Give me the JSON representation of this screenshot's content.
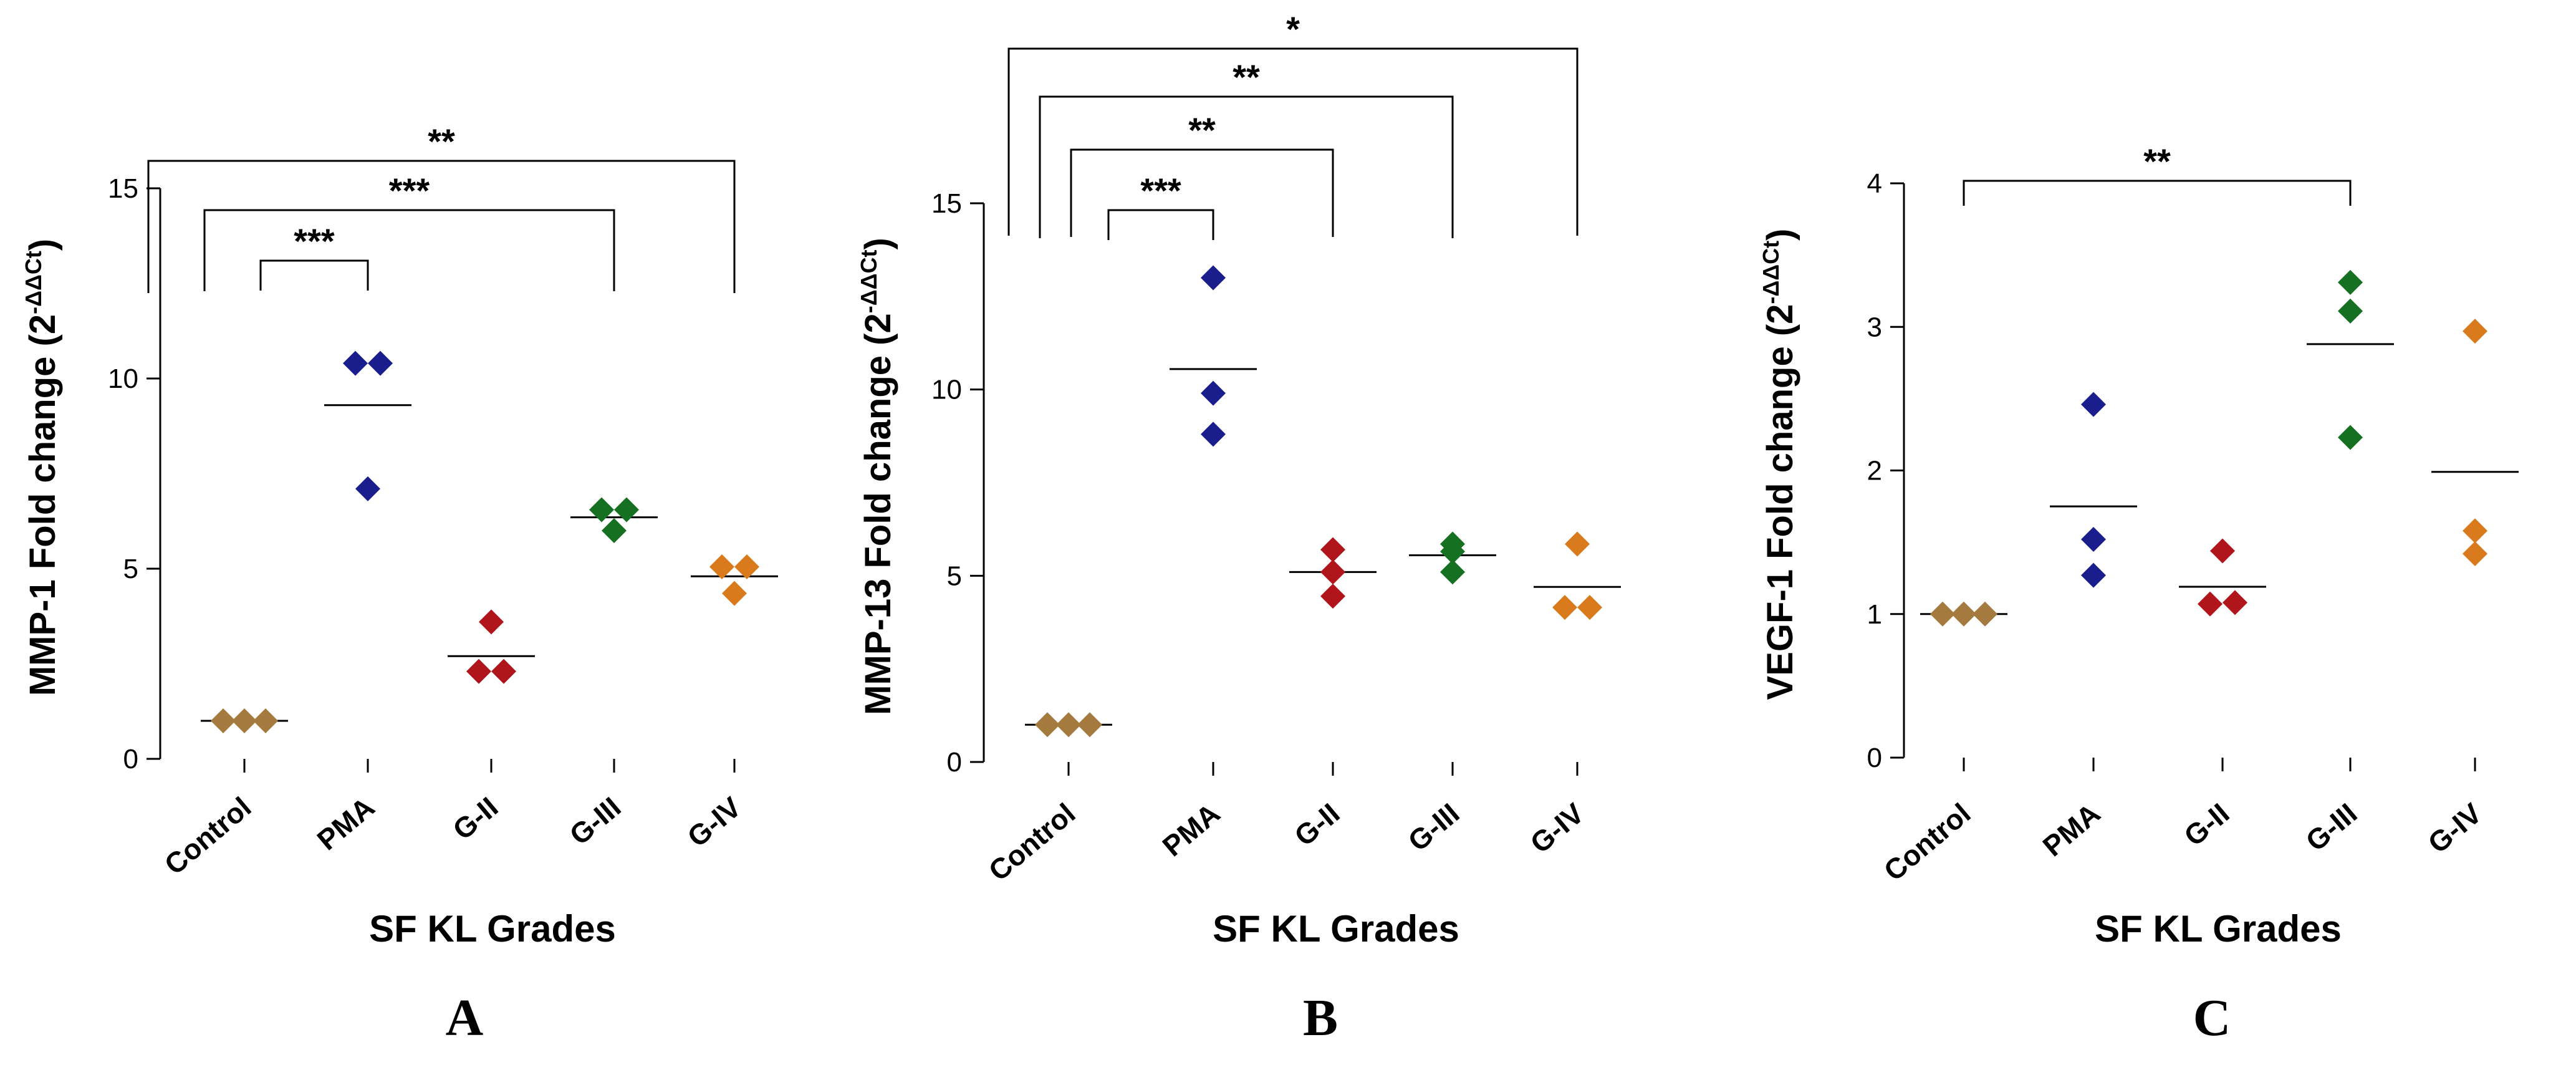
{
  "chart_data": [
    {
      "type": "scatter",
      "panel": "A",
      "ylabel_main": "MMP-1 Fold change (2",
      "ylabel_sup": "-ΔΔCt",
      "ylabel_close": ")",
      "xlabel": "SF KL Grades",
      "ylim": [
        0,
        15
      ],
      "yticks": [
        0,
        5,
        10,
        15
      ],
      "categories": [
        "Control",
        "PMA",
        "G-II",
        "G-III",
        "G-IV"
      ],
      "colors": [
        "#a57a3f",
        "#1a1d8c",
        "#b0151c",
        "#157021",
        "#d97b1c"
      ],
      "series": [
        {
          "name": "Control",
          "values": [
            1.0,
            1.0,
            1.0
          ],
          "mean": 1.0
        },
        {
          "name": "PMA",
          "values": [
            10.4,
            10.4,
            7.1
          ],
          "mean": 9.3
        },
        {
          "name": "G-II",
          "values": [
            2.3,
            3.6,
            2.3
          ],
          "mean": 2.7
        },
        {
          "name": "G-III",
          "values": [
            6.55,
            6.0,
            6.55
          ],
          "mean": 6.35
        },
        {
          "name": "G-IV",
          "values": [
            5.05,
            4.35,
            5.05
          ],
          "mean": 4.8
        }
      ],
      "brackets": [
        {
          "from": "Control",
          "to": "PMA",
          "label": "***"
        },
        {
          "from": "Control",
          "to": "G-III",
          "label": "***"
        },
        {
          "from": "Control",
          "to": "G-IV",
          "label": "**"
        }
      ]
    },
    {
      "type": "scatter",
      "panel": "B",
      "ylabel_main": "MMP-13 Fold change (2",
      "ylabel_sup": "-ΔΔCt",
      "ylabel_close": ")",
      "xlabel": "SF KL Grades",
      "ylim": [
        0,
        15
      ],
      "yticks": [
        0,
        5,
        10,
        15
      ],
      "categories": [
        "Control",
        "PMA",
        "G-II",
        "G-III",
        "G-IV"
      ],
      "colors": [
        "#a57a3f",
        "#1a1d8c",
        "#b0151c",
        "#157021",
        "#d97b1c"
      ],
      "series": [
        {
          "name": "Control",
          "values": [
            1.0,
            1.0,
            1.0
          ],
          "mean": 1.0
        },
        {
          "name": "PMA",
          "values": [
            13.0,
            9.9,
            8.8
          ],
          "mean": 10.55
        },
        {
          "name": "G-II",
          "values": [
            5.7,
            5.1,
            4.45
          ],
          "mean": 5.1
        },
        {
          "name": "G-III",
          "values": [
            5.85,
            5.1,
            5.65
          ],
          "mean": 5.55
        },
        {
          "name": "G-IV",
          "values": [
            4.15,
            5.85,
            4.15
          ],
          "mean": 4.7
        }
      ],
      "brackets": [
        {
          "from": "Control",
          "to": "PMA",
          "label": "***"
        },
        {
          "from": "Control",
          "to": "G-II",
          "label": "**"
        },
        {
          "from": "Control",
          "to": "G-III",
          "label": "**"
        },
        {
          "from": "Control",
          "to": "G-IV",
          "label": "*"
        }
      ]
    },
    {
      "type": "scatter",
      "panel": "C",
      "ylabel_main": "VEGF-1 Fold change (2",
      "ylabel_sup": "-ΔΔCt",
      "ylabel_close": ")",
      "xlabel": "SF KL Grades",
      "ylim": [
        0,
        4
      ],
      "yticks": [
        0,
        1,
        2,
        3,
        4
      ],
      "categories": [
        "Control",
        "PMA",
        "G-II",
        "G-III",
        "G-IV"
      ],
      "colors": [
        "#a57a3f",
        "#1a1d8c",
        "#b0151c",
        "#157021",
        "#d97b1c"
      ],
      "series": [
        {
          "name": "Control",
          "values": [
            1.0,
            1.0,
            1.0
          ],
          "mean": 1.0
        },
        {
          "name": "PMA",
          "values": [
            2.46,
            1.52,
            1.27
          ],
          "mean": 1.75
        },
        {
          "name": "G-II",
          "values": [
            1.07,
            1.44,
            1.08
          ],
          "mean": 1.19
        },
        {
          "name": "G-III",
          "values": [
            3.31,
            3.11,
            2.23
          ],
          "mean": 2.88
        },
        {
          "name": "G-IV",
          "values": [
            2.97,
            1.58,
            1.42
          ],
          "mean": 1.99
        }
      ],
      "brackets": [
        {
          "from": "Control",
          "to": "G-III",
          "label": "**"
        }
      ]
    }
  ]
}
